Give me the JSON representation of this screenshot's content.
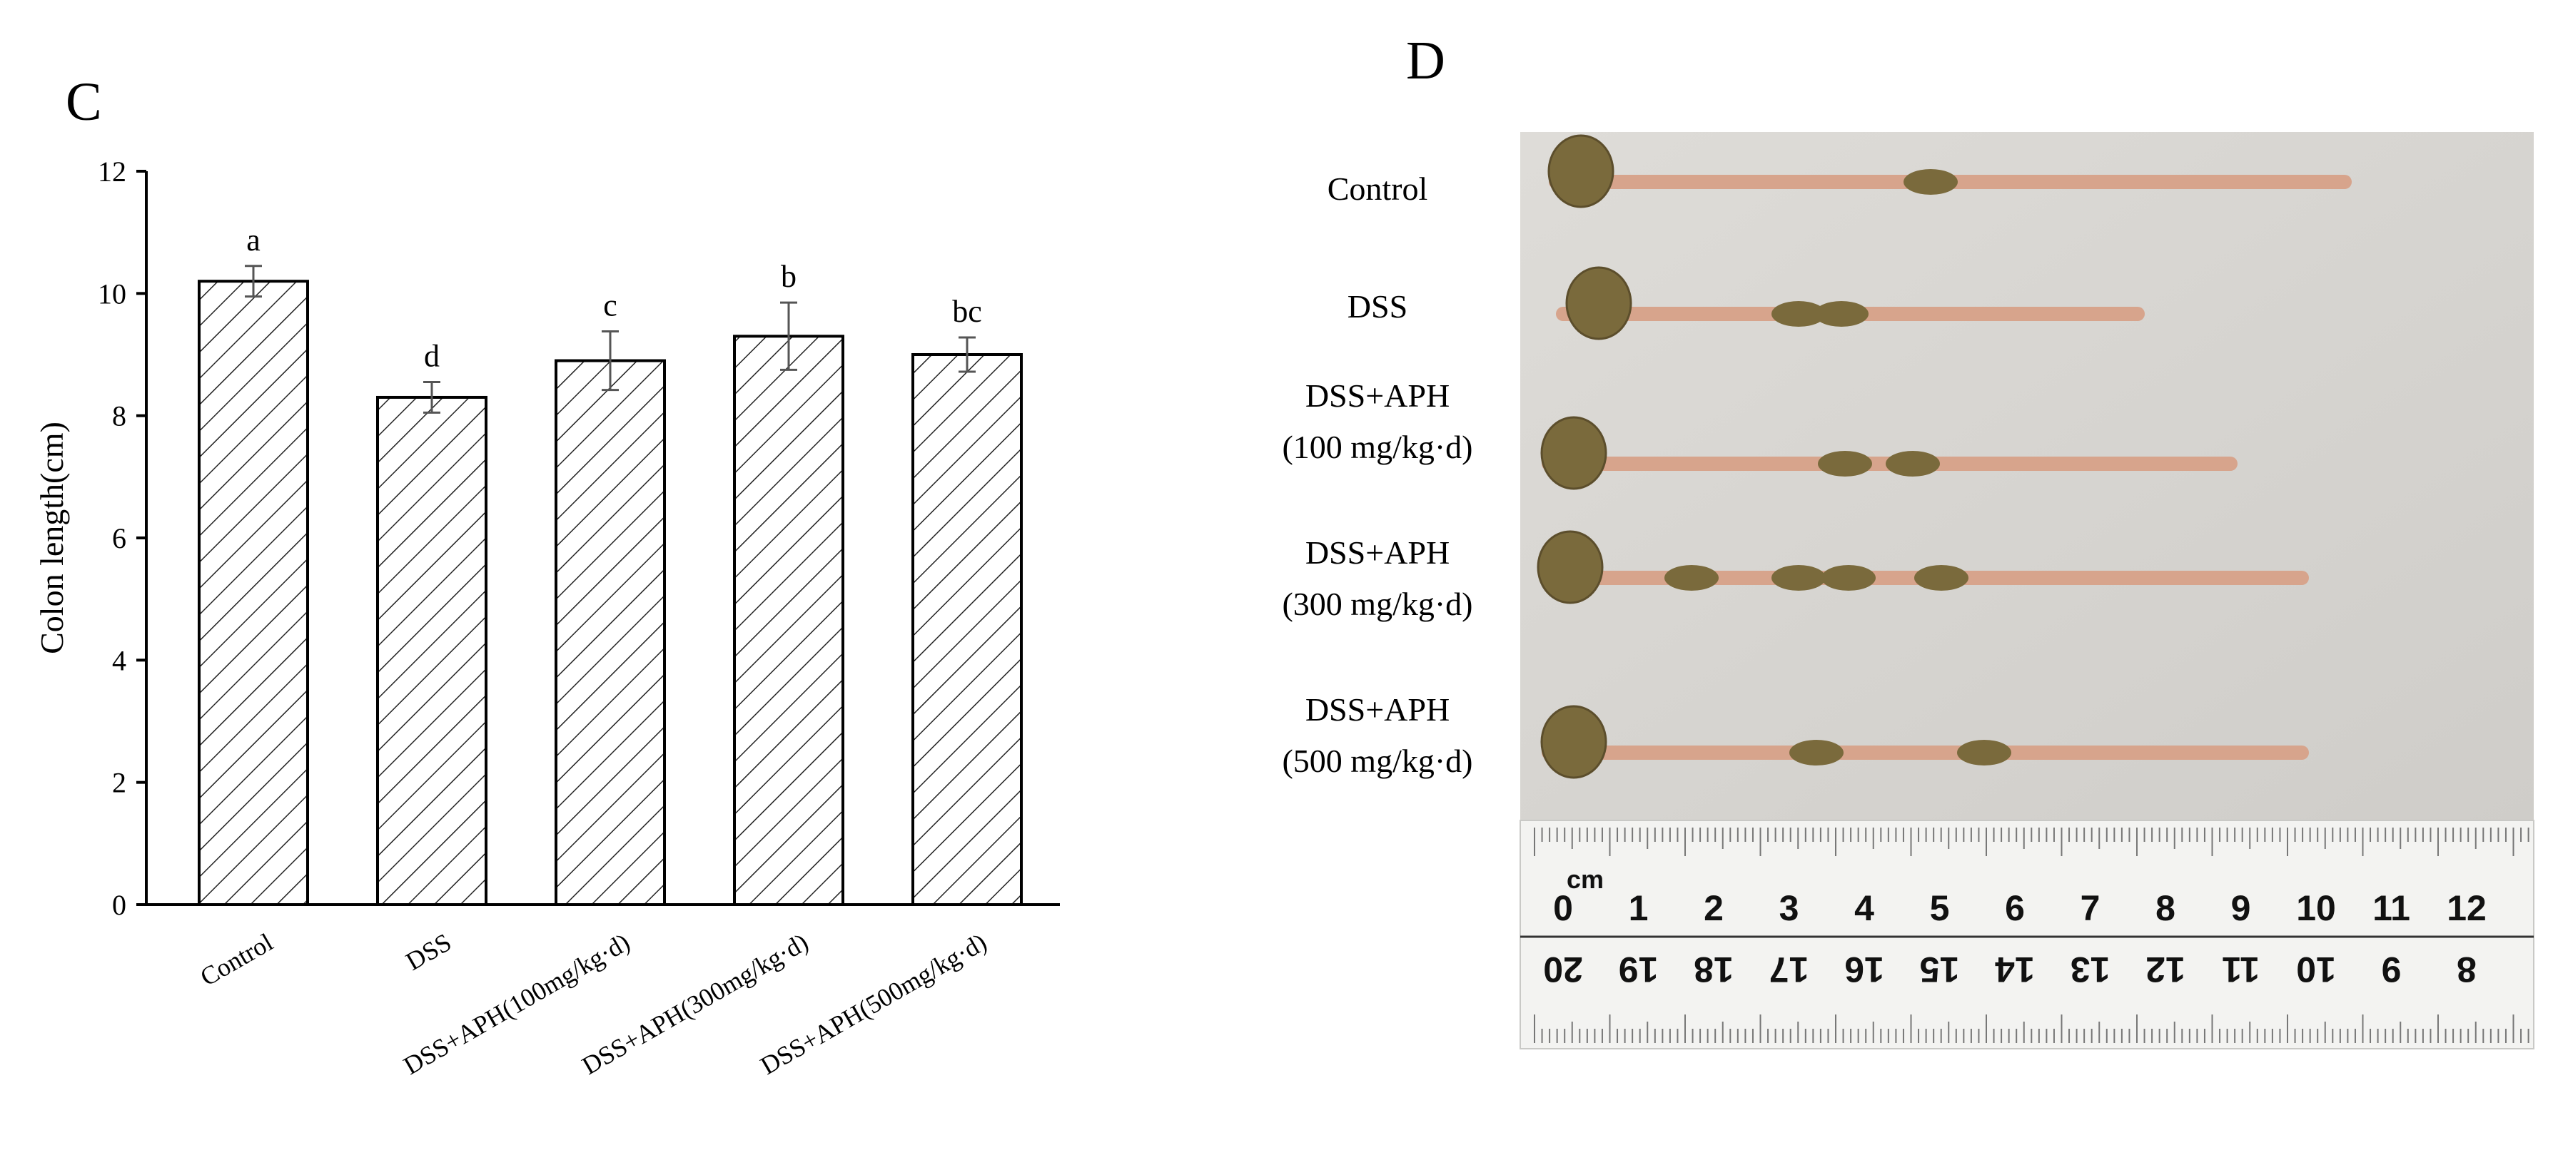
{
  "panels": {
    "left_letter": "C",
    "right_letter": "D"
  },
  "chart_data": {
    "type": "bar",
    "categories": [
      "Control",
      "DSS",
      "DSS+APH(100mg/kg·d)",
      "DSS+APH(300mg/kg·d)",
      "DSS+APH(500mg/kg·d)"
    ],
    "values": [
      10.2,
      8.3,
      8.9,
      9.3,
      9.0
    ],
    "error": [
      0.25,
      0.25,
      0.48,
      0.55,
      0.28
    ],
    "significance": [
      "a",
      "d",
      "c",
      "b",
      "bc"
    ],
    "title": "",
    "xlabel": "",
    "ylabel": "Colon length(cm)",
    "ylim": [
      0,
      12
    ],
    "yticks": [
      0,
      2,
      4,
      6,
      8,
      10,
      12
    ],
    "bar_fill": "diagonal hatch",
    "grid": false,
    "legend": "none"
  },
  "photo": {
    "labels": [
      [
        "Control"
      ],
      [
        "DSS"
      ],
      [
        "DSS+APH",
        "(100 mg/kg·d)"
      ],
      [
        "DSS+APH",
        "(300 mg/kg·d)"
      ],
      [
        "DSS+APH",
        "(500 mg/kg·d)"
      ]
    ],
    "ruler_unit": "cm",
    "ruler_top_numbers": [
      "0",
      "1",
      "2",
      "3",
      "4",
      "5",
      "6",
      "7",
      "8",
      "9",
      "10",
      "11",
      "12"
    ],
    "ruler_bottom_numbers": [
      "20",
      "19",
      "18",
      "17",
      "16",
      "15",
      "14",
      "13",
      "12",
      "11",
      "10",
      "9",
      "8"
    ],
    "colors": {
      "background": "#d9d7d3",
      "colon": "#d7a48c",
      "stool": "#7a6a3c",
      "ruler": "#f2f2f0"
    }
  }
}
